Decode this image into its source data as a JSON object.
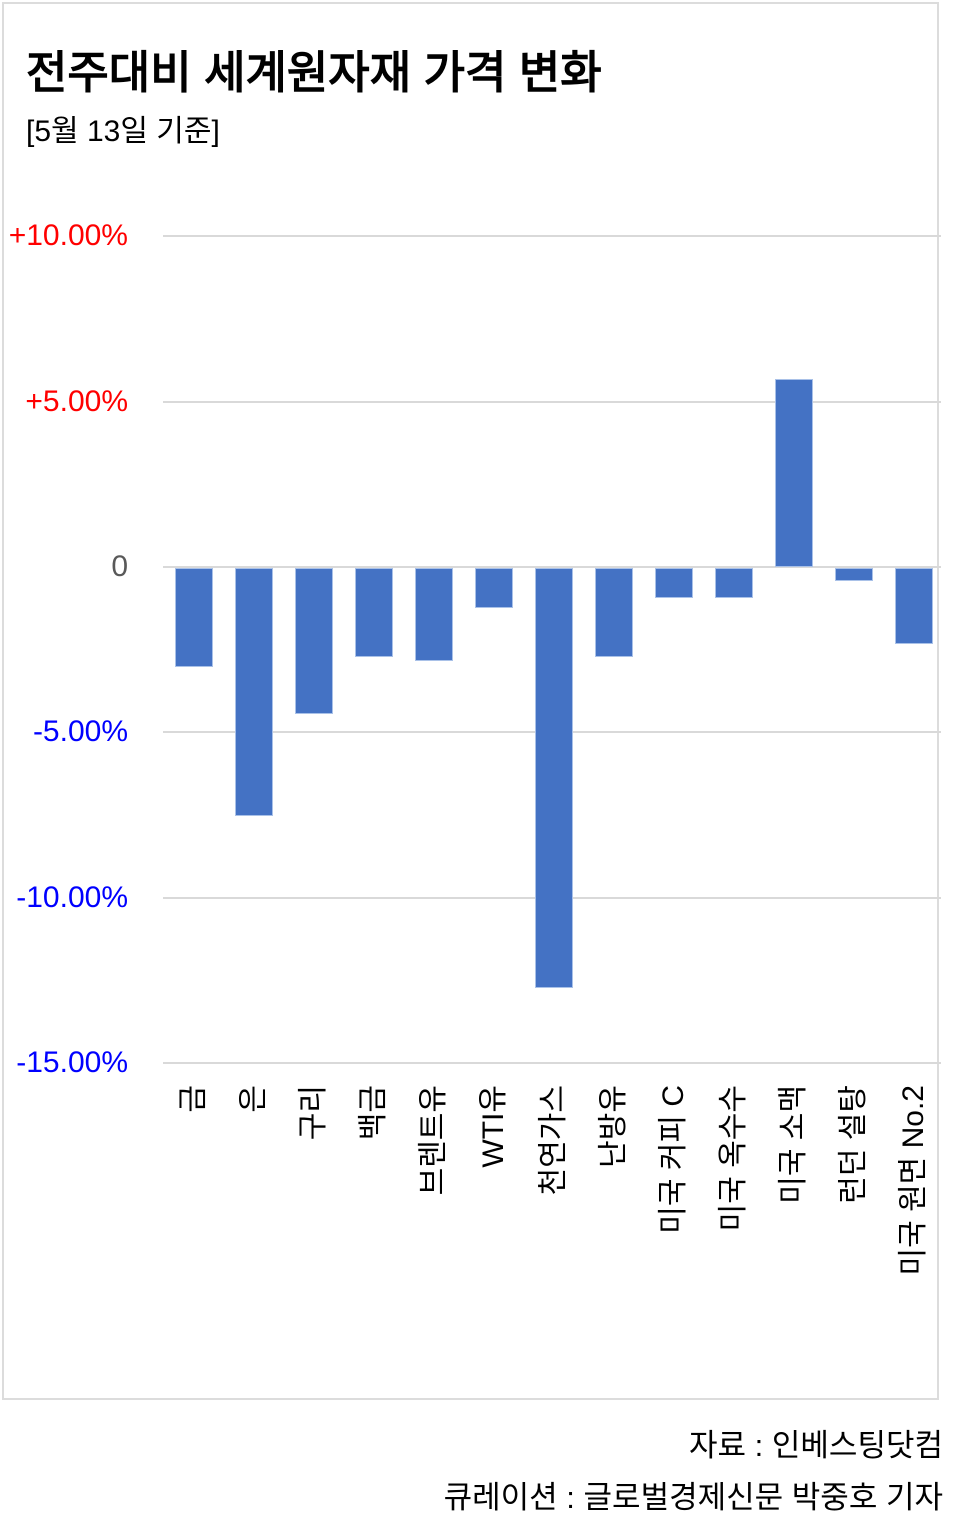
{
  "header": {
    "title": "전주대비 세계원자재 가격 변화",
    "subtitle": "[5월 13일 기준]"
  },
  "chart_data": {
    "type": "bar",
    "title": "전주대비 세계원자재 가격 변화",
    "subtitle": "[5월 13일 기준]",
    "categories": [
      "금",
      "은",
      "구리",
      "백금",
      "브렌트유",
      "WTI유",
      "천연가스",
      "난방유",
      "미국 커피 C",
      "미국 옥수수",
      "미국 소맥",
      "런던 설탕",
      "미국 원면 No.2"
    ],
    "values": [
      -3.0,
      -7.5,
      -4.4,
      -2.7,
      -2.8,
      -1.2,
      -12.7,
      -2.7,
      -0.9,
      -0.9,
      5.7,
      -0.4,
      -2.3
    ],
    "unit": "%",
    "ylim": [
      -15,
      10
    ],
    "yticks": [
      {
        "value": 10,
        "label": "+10.00%",
        "color": "#ff0000"
      },
      {
        "value": 5,
        "label": "+5.00%",
        "color": "#ff0000"
      },
      {
        "value": 0,
        "label": "0",
        "color": "#595959"
      },
      {
        "value": -5,
        "label": "-5.00%",
        "color": "#0000ff"
      },
      {
        "value": -10,
        "label": "-10.00%",
        "color": "#0000ff"
      },
      {
        "value": -15,
        "label": "-15.00%",
        "color": "#0000ff"
      }
    ],
    "grid": true,
    "legend": false,
    "bar_color": "#4472c4",
    "gridline_color": "#d9d9d9",
    "category_label_rotation": -90
  },
  "footer": {
    "source": "자료 : 인베스팅닷컴",
    "curation": "큐레이션 : 글로벌경제신문 박중호 기자"
  }
}
